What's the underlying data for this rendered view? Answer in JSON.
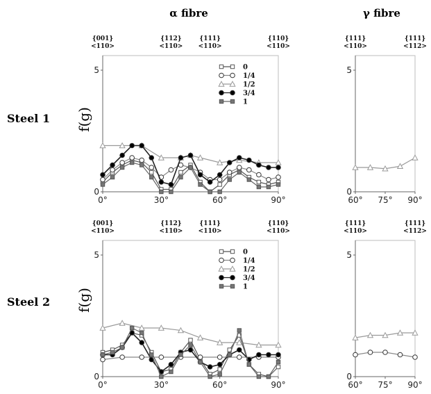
{
  "figure": {
    "titles": {
      "alpha": "α  fibre",
      "gamma": "γ  fibre"
    },
    "rows": [
      "Steel 1",
      "Steel 2"
    ],
    "ylabel": "f(g)"
  },
  "chart_data": [
    {
      "type": "line",
      "panel": "Steel 1 - alpha fibre",
      "xlim": [
        0,
        90
      ],
      "ylim": [
        0,
        5.6
      ],
      "xticks": [
        "0°",
        "30°",
        "60°",
        "90°"
      ],
      "xtick_values": [
        0,
        30,
        60,
        90
      ],
      "yticks": [
        "0",
        "5"
      ],
      "ytick_values": [
        0,
        5
      ],
      "orientations": [
        {
          "x": 0,
          "plane": "{001}",
          "dir": "<110>"
        },
        {
          "x": 35,
          "plane": "{112}",
          "dir": "<110>"
        },
        {
          "x": 55,
          "plane": "{111}",
          "dir": "<110>"
        },
        {
          "x": 90,
          "plane": "{110}",
          "dir": "<110>"
        }
      ],
      "legend": {
        "position": "top-right",
        "show": true
      },
      "series": [
        {
          "name": "0",
          "marker": "square-open",
          "x": [
            0,
            5,
            10,
            15,
            20,
            25,
            30,
            35,
            40,
            45,
            50,
            55,
            60,
            65,
            70,
            75,
            80,
            85,
            90
          ],
          "y": [
            0.4,
            0.8,
            1.1,
            1.3,
            1.2,
            0.8,
            0.1,
            0.1,
            0.8,
            1.1,
            0.4,
            0,
            0.3,
            0.7,
            0.9,
            0.6,
            0.4,
            0.3,
            0.4
          ]
        },
        {
          "name": "1/4",
          "marker": "circle-open",
          "x": [
            0,
            5,
            10,
            15,
            20,
            25,
            30,
            35,
            40,
            45,
            50,
            55,
            60,
            65,
            70,
            75,
            80,
            85,
            90
          ],
          "y": [
            0.5,
            0.9,
            1.2,
            1.4,
            1.3,
            1.0,
            0.6,
            0.9,
            1.1,
            1.0,
            0.8,
            0.5,
            0.5,
            0.8,
            1.0,
            0.9,
            0.7,
            0.5,
            0.6
          ]
        },
        {
          "name": "1/2",
          "marker": "triangle-open",
          "x": [
            0,
            10,
            20,
            30,
            40,
            45,
            50,
            60,
            70,
            80,
            90
          ],
          "y": [
            1.9,
            1.9,
            1.9,
            1.4,
            1.4,
            1.5,
            1.4,
            1.2,
            1.3,
            1.2,
            1.2
          ]
        },
        {
          "name": "3/4",
          "marker": "circle-filled",
          "x": [
            0,
            5,
            10,
            15,
            20,
            25,
            30,
            35,
            40,
            45,
            50,
            55,
            60,
            65,
            70,
            75,
            80,
            85,
            90
          ],
          "y": [
            0.7,
            1.1,
            1.5,
            1.9,
            1.9,
            1.4,
            0.4,
            0.3,
            1.4,
            1.5,
            0.7,
            0.4,
            0.7,
            1.2,
            1.4,
            1.3,
            1.1,
            1.0,
            1.0
          ]
        },
        {
          "name": "1",
          "marker": "square-filled",
          "x": [
            0,
            5,
            10,
            15,
            20,
            25,
            30,
            35,
            40,
            45,
            50,
            55,
            60,
            65,
            70,
            75,
            80,
            85,
            90
          ],
          "y": [
            0.3,
            0.6,
            1.0,
            1.2,
            1.1,
            0.6,
            0,
            0,
            0.6,
            1.0,
            0.3,
            0,
            0,
            0.5,
            0.8,
            0.5,
            0.2,
            0.2,
            0.3
          ]
        }
      ]
    },
    {
      "type": "line",
      "panel": "Steel 1 - gamma fibre",
      "xlim": [
        60,
        90
      ],
      "ylim": [
        0,
        5.6
      ],
      "xticks": [
        "60°",
        "75°",
        "90°"
      ],
      "xtick_values": [
        60,
        75,
        90
      ],
      "yticks": [
        "0",
        "5"
      ],
      "ytick_values": [
        0,
        5
      ],
      "orientations": [
        {
          "x": 60,
          "plane": "{111}",
          "dir": "<110>"
        },
        {
          "x": 90,
          "plane": "{111}",
          "dir": "<112>"
        }
      ],
      "series": [
        {
          "name": "1/2",
          "marker": "triangle-open",
          "x": [
            60,
            67.5,
            75,
            82.5,
            90
          ],
          "y": [
            1.0,
            1.0,
            0.95,
            1.05,
            1.4
          ]
        }
      ]
    },
    {
      "type": "line",
      "panel": "Steel 2 - alpha fibre",
      "xlim": [
        0,
        90
      ],
      "ylim": [
        0,
        5.6
      ],
      "xticks": [
        "0°",
        "30°",
        "60°",
        "90°"
      ],
      "xtick_values": [
        0,
        30,
        60,
        90
      ],
      "yticks": [
        "0",
        "5"
      ],
      "ytick_values": [
        0,
        5
      ],
      "orientations": [
        {
          "x": 0,
          "plane": "{001}",
          "dir": "<110>"
        },
        {
          "x": 35,
          "plane": "{112}",
          "dir": "<110>"
        },
        {
          "x": 55,
          "plane": "{111}",
          "dir": "<110>"
        },
        {
          "x": 90,
          "plane": "{110}",
          "dir": "<110>"
        }
      ],
      "legend": {
        "position": "top-right",
        "show": true
      },
      "series": [
        {
          "name": "0",
          "marker": "square-open",
          "x": [
            0,
            5,
            10,
            15,
            20,
            25,
            30,
            35,
            40,
            45,
            50,
            55,
            60,
            65,
            70,
            75,
            80,
            85,
            90
          ],
          "y": [
            1.0,
            1.1,
            1.3,
            1.8,
            1.7,
            1.0,
            0.2,
            0.3,
            1.0,
            1.5,
            0.7,
            0.1,
            0.3,
            1.1,
            1.7,
            0.5,
            0.1,
            0,
            0.4
          ]
        },
        {
          "name": "1/4",
          "marker": "circle-open",
          "x": [
            0,
            10,
            20,
            30,
            40,
            50,
            60,
            70,
            80,
            90
          ],
          "y": [
            0.7,
            0.8,
            0.8,
            0.8,
            0.8,
            0.8,
            0.8,
            0.8,
            0.8,
            0.8
          ]
        },
        {
          "name": "1/2",
          "marker": "triangle-open",
          "x": [
            0,
            10,
            20,
            30,
            40,
            50,
            60,
            70,
            80,
            90
          ],
          "y": [
            2.0,
            2.2,
            2.0,
            2.0,
            1.9,
            1.6,
            1.4,
            1.4,
            1.3,
            1.3
          ]
        },
        {
          "name": "3/4",
          "marker": "circle-filled",
          "x": [
            0,
            5,
            10,
            15,
            20,
            25,
            30,
            35,
            40,
            45,
            50,
            55,
            60,
            65,
            70,
            75,
            80,
            85,
            90
          ],
          "y": [
            0.9,
            0.9,
            1.2,
            1.8,
            1.4,
            0.7,
            0.2,
            0.5,
            1.0,
            1.1,
            0.6,
            0.4,
            0.5,
            0.9,
            1.1,
            0.7,
            0.9,
            0.9,
            0.9
          ]
        },
        {
          "name": "1",
          "marker": "square-filled",
          "x": [
            0,
            5,
            10,
            15,
            20,
            25,
            30,
            35,
            40,
            45,
            50,
            55,
            60,
            65,
            70,
            75,
            80,
            85,
            90
          ],
          "y": [
            0.9,
            1.0,
            1.2,
            2.0,
            1.8,
            0.9,
            0,
            0.2,
            0.9,
            1.3,
            0.6,
            0,
            0.1,
            0.9,
            1.9,
            0.5,
            0,
            0,
            0.6
          ]
        }
      ]
    },
    {
      "type": "line",
      "panel": "Steel 2 - gamma fibre",
      "xlim": [
        60,
        90
      ],
      "ylim": [
        0,
        5.6
      ],
      "xticks": [
        "60°",
        "75°",
        "90°"
      ],
      "xtick_values": [
        60,
        75,
        90
      ],
      "yticks": [
        "0",
        "5"
      ],
      "ytick_values": [
        0,
        5
      ],
      "orientations": [
        {
          "x": 60,
          "plane": "{111}",
          "dir": "<110>"
        },
        {
          "x": 90,
          "plane": "{111}",
          "dir": "<112>"
        }
      ],
      "series": [
        {
          "name": "1/2",
          "marker": "triangle-open",
          "x": [
            60,
            67.5,
            75,
            82.5,
            90
          ],
          "y": [
            1.6,
            1.7,
            1.7,
            1.8,
            1.8
          ]
        },
        {
          "name": "1/4",
          "marker": "circle-open",
          "x": [
            60,
            67.5,
            75,
            82.5,
            90
          ],
          "y": [
            0.9,
            1.0,
            1.0,
            0.9,
            0.8
          ]
        }
      ]
    }
  ]
}
